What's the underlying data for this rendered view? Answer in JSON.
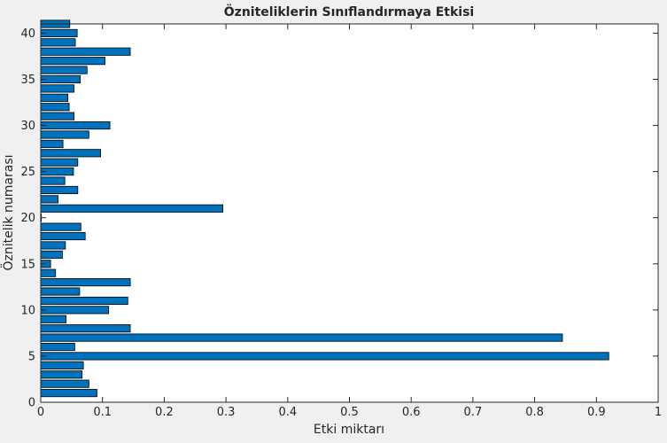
{
  "chart_data": {
    "type": "bar",
    "orientation": "horizontal",
    "title": "Özniteliklerin Sınıflandırmaya Etkisi",
    "xlabel": "Etki miktarı",
    "ylabel": "Öznitelik numarası",
    "xlim": [
      0,
      1
    ],
    "ylim": [
      0,
      41
    ],
    "xticks": [
      "0",
      "0.1",
      "0.2",
      "0.3",
      "0.4",
      "0.5",
      "0.6",
      "0.7",
      "0.8",
      "0.9",
      "1"
    ],
    "yticks": [
      "0",
      "5",
      "10",
      "15",
      "20",
      "25",
      "30",
      "35",
      "40"
    ],
    "grid": false,
    "bar_color": "#0072bd",
    "categories": [
      1,
      2,
      3,
      4,
      5,
      6,
      7,
      8,
      9,
      10,
      11,
      12,
      13,
      14,
      15,
      16,
      17,
      18,
      19,
      20,
      21,
      22,
      23,
      24,
      25,
      26,
      27,
      28,
      29,
      30,
      31,
      32,
      33,
      34,
      35,
      36,
      37,
      38,
      39,
      40,
      41
    ],
    "values": [
      0.091,
      0.078,
      0.067,
      0.069,
      0.92,
      0.055,
      0.845,
      0.145,
      0.041,
      0.11,
      0.141,
      0.063,
      0.145,
      0.024,
      0.016,
      0.035,
      0.04,
      0.072,
      0.065,
      0.001,
      0.295,
      0.028,
      0.06,
      0.039,
      0.053,
      0.06,
      0.097,
      0.036,
      0.078,
      0.112,
      0.054,
      0.046,
      0.044,
      0.054,
      0.064,
      0.075,
      0.104,
      0.145,
      0.056,
      0.059,
      0.047
    ]
  }
}
